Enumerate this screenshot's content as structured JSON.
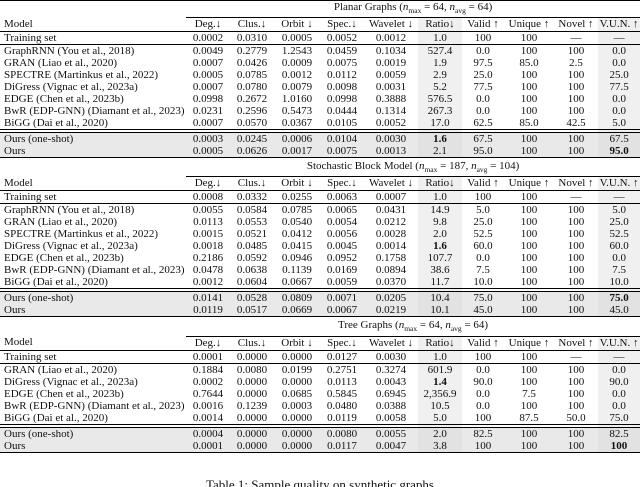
{
  "caption": "Table 1: Sample quality on synthetic graphs",
  "columns": [
    "Model",
    "Deg.↓",
    "Clus.↓",
    "Orbit ↓",
    "Spec.↓",
    "Wavelet ↓",
    "Ratio↓",
    "Valid ↑",
    "Unique ↑",
    "Novel ↑",
    "V.U.N. ↑"
  ],
  "shaded_columns": [
    "Ratio↓",
    "V.U.N. ↑"
  ],
  "colors": {
    "ours_row_bg": "#e9e9e9",
    "shaded_col_bg": "#f0f0f0",
    "shaded_ours_bg": "#e2e2e2",
    "rule": "#000000"
  },
  "sections": [
    {
      "id": "planar-graphs",
      "title_parts": [
        [
          "t",
          "Planar Graphs ("
        ],
        [
          "i",
          "n"
        ],
        [
          "s",
          "max"
        ],
        [
          "t",
          " = 64, "
        ],
        [
          "i",
          "n"
        ],
        [
          "s",
          "avg"
        ],
        [
          "t",
          " = 64)"
        ]
      ],
      "rows": [
        {
          "model": "Training set",
          "group": "training",
          "values": [
            "0.0002",
            "0.0310",
            "0.0005",
            "0.0052",
            "0.0012",
            "1.0",
            "100",
            "100",
            "—",
            "—"
          ]
        },
        {
          "model": "GraphRNN (You et al., 2018)",
          "group": "baseline",
          "values": [
            "0.0049",
            "0.2779",
            "1.2543",
            "0.0459",
            "0.1034",
            "527.4",
            "0.0",
            "100",
            "100",
            "0.0"
          ]
        },
        {
          "model": "GRAN (Liao et al., 2020)",
          "group": "baseline",
          "values": [
            "0.0007",
            "0.0426",
            "0.0009",
            "0.0075",
            "0.0019",
            "1.9",
            "97.5",
            "85.0",
            "2.5",
            "0.0"
          ]
        },
        {
          "model": "SPECTRE (Martinkus et al., 2022)",
          "group": "baseline",
          "values": [
            "0.0005",
            "0.0785",
            "0.0012",
            "0.0112",
            "0.0059",
            "2.9",
            "25.0",
            "100",
            "100",
            "25.0"
          ]
        },
        {
          "model": "DiGress (Vignac et al., 2023a)",
          "group": "baseline",
          "values": [
            "0.0007",
            "0.0780",
            "0.0079",
            "0.0098",
            "0.0031",
            "5.2",
            "77.5",
            "100",
            "100",
            "77.5"
          ]
        },
        {
          "model": "EDGE (Chen et al., 2023b)",
          "group": "baseline",
          "values": [
            "0.0998",
            "0.2672",
            "1.0160",
            "0.0998",
            "0.3888",
            "576.5",
            "0.0",
            "100",
            "100",
            "0.0"
          ]
        },
        {
          "model": "BwR (EDP-GNN) (Diamant et al., 2023)",
          "group": "baseline",
          "values": [
            "0.0231",
            "0.2596",
            "0.5473",
            "0.0444",
            "0.1314",
            "267.3",
            "0.0",
            "100",
            "100",
            "0.0"
          ]
        },
        {
          "model": "BiGG (Dai et al., 2020)",
          "group": "baseline",
          "values": [
            "0.0007",
            "0.0570",
            "0.0367",
            "0.0105",
            "0.0052",
            "17.0",
            "62.5",
            "85.0",
            "42.5",
            "5.0"
          ]
        },
        {
          "model": "Ours (one-shot)",
          "group": "ours",
          "values": [
            "0.0003",
            "0.0245",
            "0.0006",
            "0.0104",
            "0.0030",
            "1.6",
            "67.5",
            "100",
            "100",
            "67.5"
          ],
          "bold": [
            5
          ]
        },
        {
          "model": "Ours",
          "group": "ours",
          "values": [
            "0.0005",
            "0.0626",
            "0.0017",
            "0.0075",
            "0.0013",
            "2.1",
            "95.0",
            "100",
            "100",
            "95.0"
          ],
          "bold": [
            9
          ]
        }
      ]
    },
    {
      "id": "stochastic-block-model",
      "title_parts": [
        [
          "t",
          "Stochastic Block Model ("
        ],
        [
          "i",
          "n"
        ],
        [
          "s",
          "max"
        ],
        [
          "t",
          " = 187, "
        ],
        [
          "i",
          "n"
        ],
        [
          "s",
          "avg"
        ],
        [
          "t",
          " = 104)"
        ]
      ],
      "rows": [
        {
          "model": "Training set",
          "group": "training",
          "values": [
            "0.0008",
            "0.0332",
            "0.0255",
            "0.0063",
            "0.0007",
            "1.0",
            "100",
            "100",
            "—",
            "—"
          ]
        },
        {
          "model": "GraphRNN (You et al., 2018)",
          "group": "baseline",
          "values": [
            "0.0055",
            "0.0584",
            "0.0785",
            "0.0065",
            "0.0431",
            "14.9",
            "5.0",
            "100",
            "100",
            "5.0"
          ]
        },
        {
          "model": "GRAN (Liao et al., 2020)",
          "group": "baseline",
          "values": [
            "0.0113",
            "0.0553",
            "0.0540",
            "0.0054",
            "0.0212",
            "9.8",
            "25.0",
            "100",
            "100",
            "25.0"
          ]
        },
        {
          "model": "SPECTRE (Martinkus et al., 2022)",
          "group": "baseline",
          "values": [
            "0.0015",
            "0.0521",
            "0.0412",
            "0.0056",
            "0.0028",
            "2.0",
            "52.5",
            "100",
            "100",
            "52.5"
          ]
        },
        {
          "model": "DiGress (Vignac et al., 2023a)",
          "group": "baseline",
          "values": [
            "0.0018",
            "0.0485",
            "0.0415",
            "0.0045",
            "0.0014",
            "1.6",
            "60.0",
            "100",
            "100",
            "60.0"
          ],
          "bold": [
            5
          ]
        },
        {
          "model": "EDGE (Chen et al., 2023b)",
          "group": "baseline",
          "values": [
            "0.2186",
            "0.0592",
            "0.0946",
            "0.0952",
            "0.1758",
            "107.7",
            "0.0",
            "100",
            "100",
            "0.0"
          ]
        },
        {
          "model": "BwR (EDP-GNN) (Diamant et al., 2023)",
          "group": "baseline",
          "values": [
            "0.0478",
            "0.0638",
            "0.1139",
            "0.0169",
            "0.0894",
            "38.6",
            "7.5",
            "100",
            "100",
            "7.5"
          ]
        },
        {
          "model": "BiGG (Dai et al., 2020)",
          "group": "baseline",
          "values": [
            "0.0012",
            "0.0604",
            "0.0667",
            "0.0059",
            "0.0370",
            "11.7",
            "10.0",
            "100",
            "100",
            "10.0"
          ]
        },
        {
          "model": "Ours (one-shot)",
          "group": "ours",
          "values": [
            "0.0141",
            "0.0528",
            "0.0809",
            "0.0071",
            "0.0205",
            "10.4",
            "75.0",
            "100",
            "100",
            "75.0"
          ],
          "bold": [
            9
          ]
        },
        {
          "model": "Ours",
          "group": "ours",
          "values": [
            "0.0119",
            "0.0517",
            "0.0669",
            "0.0067",
            "0.0219",
            "10.1",
            "45.0",
            "100",
            "100",
            "45.0"
          ]
        }
      ]
    },
    {
      "id": "tree-graphs",
      "title_parts": [
        [
          "t",
          "Tree Graphs ("
        ],
        [
          "i",
          "n"
        ],
        [
          "s",
          "max"
        ],
        [
          "t",
          " = 64, "
        ],
        [
          "i",
          "n"
        ],
        [
          "s",
          "avg"
        ],
        [
          "t",
          " = 64)"
        ]
      ],
      "rows": [
        {
          "model": "Training set",
          "group": "training",
          "values": [
            "0.0001",
            "0.0000",
            "0.0000",
            "0.0127",
            "0.0030",
            "1.0",
            "100",
            "100",
            "—",
            "—"
          ]
        },
        {
          "model": "GRAN (Liao et al., 2020)",
          "group": "baseline",
          "values": [
            "0.1884",
            "0.0080",
            "0.0199",
            "0.2751",
            "0.3274",
            "601.9",
            "0.0",
            "100",
            "100",
            "0.0"
          ]
        },
        {
          "model": "DiGress (Vignac et al., 2023a)",
          "group": "baseline",
          "values": [
            "0.0002",
            "0.0000",
            "0.0000",
            "0.0113",
            "0.0043",
            "1.4",
            "90.0",
            "100",
            "100",
            "90.0"
          ],
          "bold": [
            5
          ]
        },
        {
          "model": "EDGE (Chen et al., 2023b)",
          "group": "baseline",
          "values": [
            "0.7644",
            "0.0000",
            "0.0685",
            "0.5845",
            "0.6945",
            "2,356.9",
            "0.0",
            "7.5",
            "100",
            "0.0"
          ]
        },
        {
          "model": "BwR (EDP-GNN) (Diamant et al., 2023)",
          "group": "baseline",
          "values": [
            "0.0016",
            "0.1239",
            "0.0003",
            "0.0480",
            "0.0388",
            "10.5",
            "0.0",
            "100",
            "100",
            "0.0"
          ]
        },
        {
          "model": "BiGG (Dai et al., 2020)",
          "group": "baseline",
          "values": [
            "0.0014",
            "0.0000",
            "0.0000",
            "0.0119",
            "0.0058",
            "5.0",
            "100",
            "87.5",
            "50.0",
            "75.0"
          ]
        },
        {
          "model": "Ours (one-shot)",
          "group": "ours",
          "values": [
            "0.0004",
            "0.0000",
            "0.0000",
            "0.0080",
            "0.0055",
            "2.0",
            "82.5",
            "100",
            "100",
            "82.5"
          ]
        },
        {
          "model": "Ours",
          "group": "ours",
          "values": [
            "0.0001",
            "0.0000",
            "0.0000",
            "0.0117",
            "0.0047",
            "3.8",
            "100",
            "100",
            "100",
            "100"
          ],
          "bold": [
            9
          ]
        }
      ]
    }
  ]
}
